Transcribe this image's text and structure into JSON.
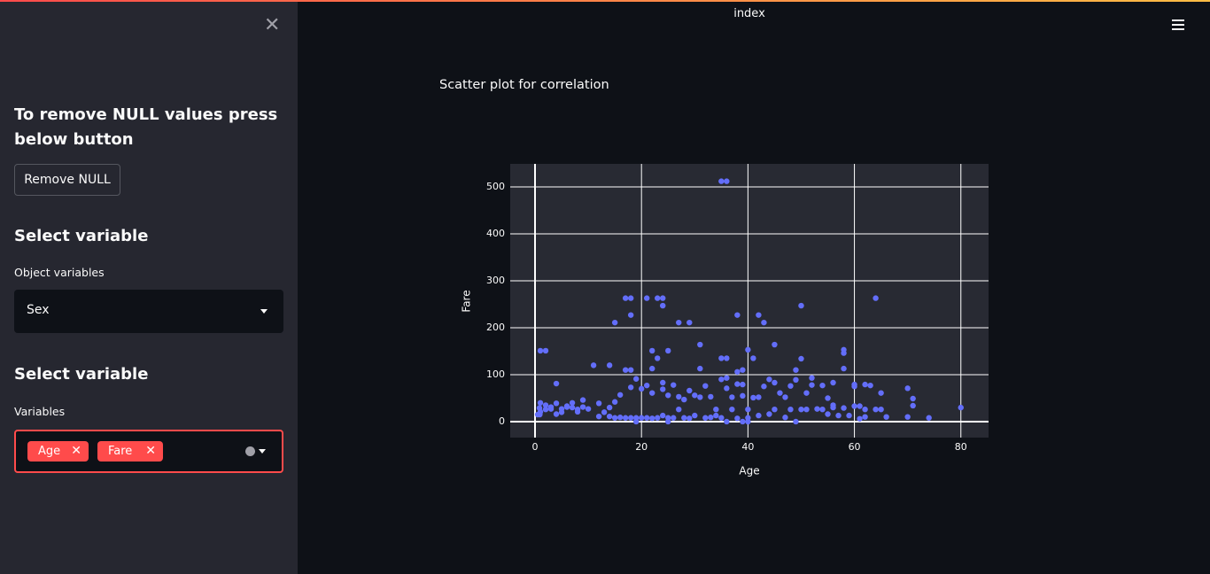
{
  "header": {
    "title": "index"
  },
  "sidebar": {
    "heading": "To remove NULL values press below button",
    "button": "Remove NULL",
    "section1": {
      "title": "Select variable",
      "label": "Object variables",
      "selected": "Sex"
    },
    "section2": {
      "title": "Select variable",
      "label": "Variables",
      "tags": [
        "Age",
        "Fare"
      ]
    }
  },
  "chart_data": {
    "type": "scatter",
    "title": "Scatter plot for correlation",
    "xlabel": "Age",
    "ylabel": "Fare",
    "color": "#636efa",
    "grid": true,
    "xlim": [
      -4.66,
      85.2
    ],
    "ylim": [
      -34,
      549
    ],
    "xticks": [
      0,
      20,
      40,
      60,
      80
    ],
    "yticks": [
      0,
      100,
      200,
      300,
      400,
      500
    ],
    "x": [
      35,
      36,
      1,
      2,
      17,
      18,
      21,
      23,
      24,
      64,
      24,
      50,
      15,
      27,
      29,
      18,
      38,
      42,
      43,
      31,
      45,
      22,
      23,
      25,
      36,
      35,
      40,
      41,
      58,
      58,
      50,
      11,
      14,
      17,
      18,
      22,
      24,
      31,
      38,
      36,
      39,
      39,
      4,
      49,
      52,
      56,
      58,
      60,
      62,
      63,
      65,
      70,
      71,
      71,
      70,
      74,
      80,
      65,
      66,
      64,
      62,
      61,
      60,
      55,
      56,
      54,
      51,
      48,
      45,
      47,
      44,
      42,
      40,
      38,
      37,
      35,
      34,
      33,
      32,
      30,
      29,
      28,
      27,
      26,
      25,
      24,
      23,
      22,
      21,
      20,
      19,
      18,
      17,
      16,
      15,
      14,
      13,
      12,
      10,
      9,
      8,
      7,
      6,
      5,
      4,
      3,
      2,
      1,
      0.5,
      0.9,
      1,
      2,
      3,
      4,
      5,
      6,
      7,
      8,
      9,
      12,
      14,
      15,
      16,
      18,
      19,
      20,
      21,
      22,
      24,
      25,
      26,
      27,
      28,
      29,
      30,
      31,
      32,
      33,
      34,
      35,
      36,
      37,
      38,
      39,
      40,
      41,
      42,
      43,
      44,
      45,
      46,
      47,
      48,
      49,
      50,
      51,
      52,
      53,
      54,
      55,
      56,
      57,
      58,
      59,
      60,
      61,
      62,
      0.83,
      19,
      25,
      36,
      40,
      49,
      39
    ],
    "values": [
      512,
      512,
      151,
      151,
      263,
      263,
      263,
      263,
      263,
      263,
      247,
      247,
      211,
      211,
      211,
      227,
      227,
      227,
      211,
      164,
      164,
      151,
      135,
      151,
      135,
      135,
      153,
      135,
      153,
      146,
      134,
      120,
      120,
      110,
      110,
      113,
      83,
      113,
      106,
      93,
      110,
      79,
      81,
      110,
      93,
      83,
      113,
      79,
      79,
      77,
      61,
      71,
      49,
      34,
      10,
      8,
      30,
      26,
      10,
      26,
      26,
      6,
      33,
      16,
      30,
      26,
      26,
      26,
      26,
      9,
      16,
      13,
      8,
      7,
      26,
      8,
      13,
      9,
      8,
      13,
      7,
      8,
      26,
      8,
      8,
      13,
      8,
      7,
      8,
      8,
      8,
      8,
      8,
      9,
      8,
      11,
      20,
      11,
      27,
      31,
      21,
      30,
      31,
      20,
      16,
      27,
      26,
      21,
      15,
      15,
      40,
      35,
      31,
      39,
      27,
      33,
      40,
      26,
      46,
      39,
      30,
      42,
      57,
      73,
      91,
      70,
      77,
      61,
      69,
      56,
      78,
      53,
      47,
      66,
      56,
      52,
      76,
      53,
      26,
      90,
      71,
      52,
      80,
      55,
      26,
      51,
      52,
      75,
      90,
      83,
      61,
      52,
      76,
      89,
      26,
      61,
      78,
      27,
      77,
      50,
      35,
      13,
      29,
      13,
      75,
      33,
      10,
      29,
      0,
      0,
      0,
      0,
      0,
      0
    ]
  }
}
